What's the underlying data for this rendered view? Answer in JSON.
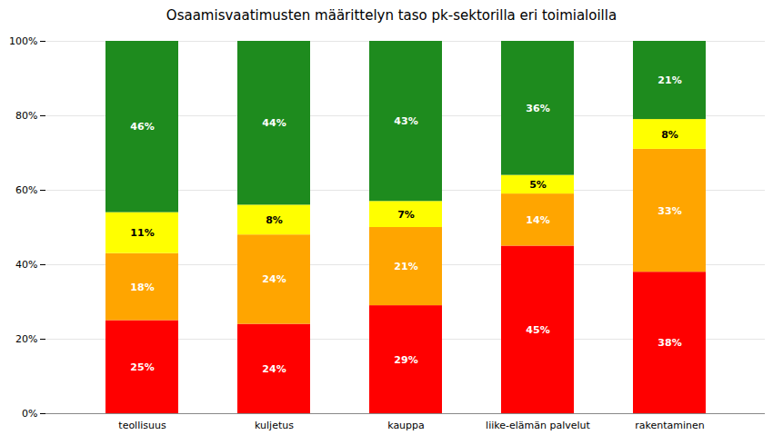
{
  "chart_data": {
    "type": "bar",
    "stacked": true,
    "data_labels": true,
    "grid": true,
    "title": "Osaamisvaatimusten määrittelyn taso pk-sektorilla eri toimialoilla",
    "categories": [
      "teollisuus",
      "kuljetus",
      "kauppa",
      "liike-elämän palvelut",
      "rakentaminen"
    ],
    "series": [
      {
        "color": "#ff0000",
        "values": [
          25,
          24,
          29,
          45,
          38
        ],
        "value_labels": [
          "25%",
          "24%",
          "29%",
          "45%",
          "38%"
        ]
      },
      {
        "color": "#ffa500",
        "values": [
          18,
          24,
          21,
          14,
          33
        ],
        "value_labels": [
          "18%",
          "24%",
          "21%",
          "14%",
          "33%"
        ]
      },
      {
        "color": "#ffff00",
        "values": [
          11,
          8,
          7,
          5,
          8
        ],
        "value_labels": [
          "11%",
          "8%",
          "7%",
          "5%",
          "8%"
        ]
      },
      {
        "color": "#1e8b1e",
        "values": [
          46,
          44,
          43,
          36,
          21
        ],
        "value_labels": [
          "46%",
          "44%",
          "43%",
          "36%",
          "21%"
        ]
      }
    ],
    "ylim": [
      0,
      100
    ],
    "yticks": [
      {
        "value": 0,
        "label": "0%"
      },
      {
        "value": 20,
        "label": "20%"
      },
      {
        "value": 40,
        "label": "40%"
      },
      {
        "value": 60,
        "label": "60%"
      },
      {
        "value": 80,
        "label": "80%"
      },
      {
        "value": 100,
        "label": "100%"
      }
    ]
  }
}
